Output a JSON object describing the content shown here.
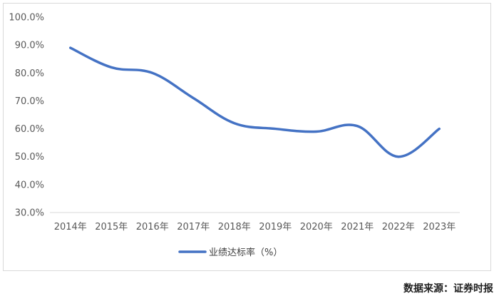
{
  "chart_data": {
    "type": "line",
    "categories": [
      "2014年",
      "2015年",
      "2016年",
      "2017年",
      "2018年",
      "2019年",
      "2020年",
      "2021年",
      "2022年",
      "2023年"
    ],
    "series": [
      {
        "name": "业绩达标率（%）",
        "values": [
          89.0,
          82.0,
          80.0,
          71.0,
          62.0,
          60.0,
          59.0,
          61.0,
          50.0,
          60.0
        ],
        "color": "#4472c4"
      }
    ],
    "ylim": [
      30,
      100
    ],
    "yticks": [
      "100.0%",
      "90.0%",
      "80.0%",
      "70.0%",
      "60.0%",
      "50.0%",
      "40.0%",
      "30.0%"
    ],
    "grid": false,
    "legend_position": "bottom"
  },
  "source_note": "数据来源：证券时报"
}
